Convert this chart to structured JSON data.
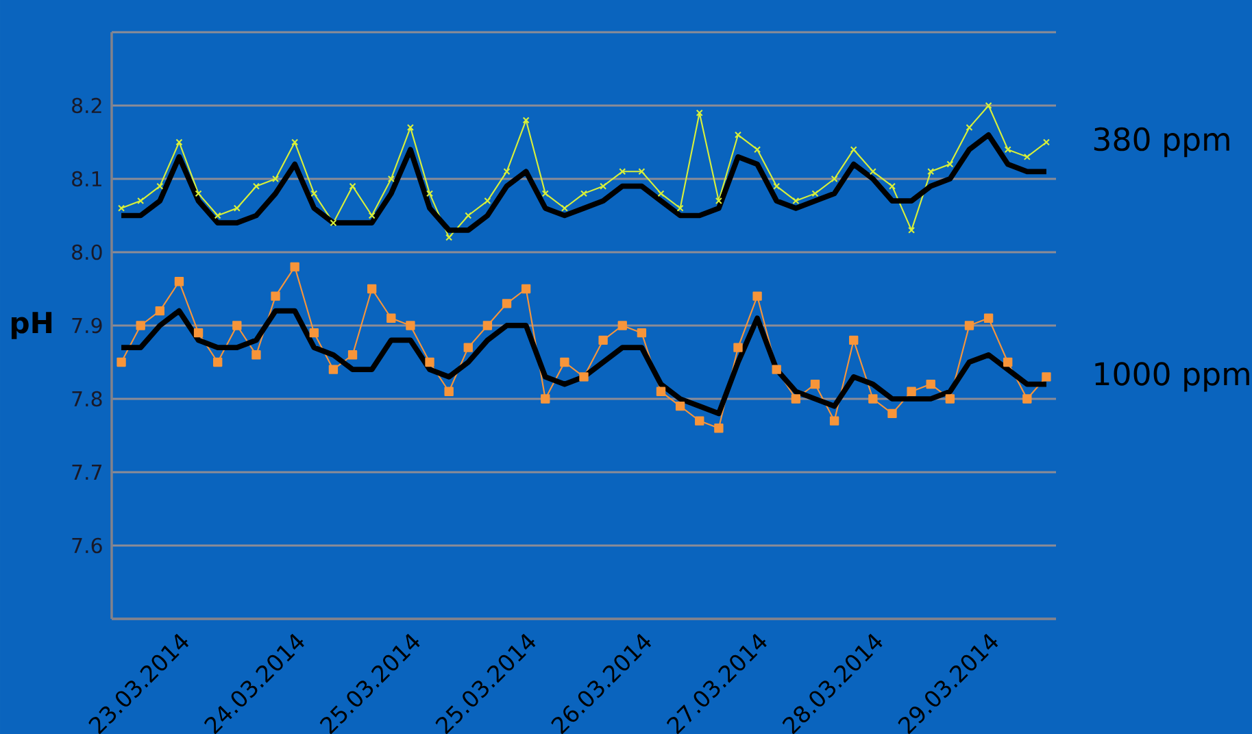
{
  "chart_data": {
    "type": "line",
    "ylabel": "pH",
    "categories": [
      null,
      null,
      null,
      "23.03.2014",
      null,
      null,
      null,
      null,
      null,
      "24.03.2014",
      null,
      null,
      null,
      null,
      null,
      "25.03.2014",
      null,
      null,
      null,
      null,
      null,
      "25.03.2014",
      null,
      null,
      null,
      null,
      null,
      "26.03.2014",
      null,
      null,
      null,
      null,
      null,
      "27.03.2014",
      null,
      null,
      null,
      null,
      null,
      "28.03.2014",
      null,
      null,
      null,
      null,
      null,
      "29.03.2014",
      null,
      null,
      null
    ],
    "ylim": [
      7.5,
      8.3
    ],
    "yticks": [
      {
        "value": 7.5,
        "label": null
      },
      7.6,
      7.7,
      7.8,
      7.9,
      {
        "value": 8.0,
        "label": "8.0"
      },
      8.1,
      8.2,
      {
        "value": 8.3,
        "label": null
      }
    ],
    "grid": "y",
    "series": [
      {
        "name": "380 ppm",
        "color": "#d8f03a",
        "marker": "cross",
        "values": [
          8.06,
          8.07,
          8.09,
          8.15,
          8.08,
          8.05,
          8.06,
          8.09,
          8.1,
          8.15,
          8.08,
          8.04,
          8.09,
          8.05,
          8.1,
          8.17,
          8.08,
          8.02,
          8.05,
          8.07,
          8.11,
          8.18,
          8.08,
          8.06,
          8.08,
          8.09,
          8.11,
          8.11,
          8.08,
          8.06,
          8.19,
          8.07,
          8.16,
          8.14,
          8.09,
          8.07,
          8.08,
          8.1,
          8.14,
          8.11,
          8.09,
          8.03,
          8.11,
          8.12,
          8.17,
          8.2,
          8.14,
          8.13,
          8.15
        ]
      },
      {
        "color": "#000000",
        "marker": "none",
        "values": [
          8.05,
          8.05,
          8.07,
          8.13,
          8.07,
          8.04,
          8.04,
          8.05,
          8.08,
          8.12,
          8.06,
          8.04,
          8.04,
          8.04,
          8.08,
          8.14,
          8.06,
          8.03,
          8.03,
          8.05,
          8.09,
          8.11,
          8.06,
          8.05,
          8.06,
          8.07,
          8.09,
          8.09,
          8.07,
          8.05,
          8.05,
          8.06,
          8.13,
          8.12,
          8.07,
          8.06,
          8.07,
          8.08,
          8.12,
          8.1,
          8.07,
          8.07,
          8.09,
          8.1,
          8.14,
          8.16,
          8.12,
          8.11,
          8.11
        ]
      },
      {
        "name": "1000 ppm",
        "color": "#f7953a",
        "marker": "square",
        "values": [
          7.85,
          7.9,
          7.92,
          7.96,
          7.89,
          7.85,
          7.9,
          7.86,
          7.94,
          7.98,
          7.89,
          7.84,
          7.86,
          7.95,
          7.91,
          7.9,
          7.85,
          7.81,
          7.87,
          7.9,
          7.93,
          7.95,
          7.8,
          7.85,
          7.83,
          7.88,
          7.9,
          7.89,
          7.81,
          7.79,
          7.77,
          7.76,
          7.87,
          7.94,
          7.84,
          7.8,
          7.82,
          7.77,
          7.88,
          7.8,
          7.78,
          7.81,
          7.82,
          7.8,
          7.9,
          7.91,
          7.85,
          7.8,
          7.83
        ]
      },
      {
        "color": "#000000",
        "marker": "none",
        "values": [
          7.87,
          7.87,
          7.9,
          7.92,
          7.88,
          7.87,
          7.87,
          7.88,
          7.92,
          7.92,
          7.87,
          7.86,
          7.84,
          7.84,
          7.88,
          7.88,
          7.84,
          7.83,
          7.85,
          7.88,
          7.9,
          7.9,
          7.83,
          7.82,
          7.83,
          7.85,
          7.87,
          7.87,
          7.82,
          7.8,
          7.79,
          7.78,
          7.85,
          7.91,
          7.84,
          7.81,
          7.8,
          7.79,
          7.83,
          7.82,
          7.8,
          7.8,
          7.8,
          7.81,
          7.85,
          7.86,
          7.84,
          7.82,
          7.82
        ]
      }
    ]
  }
}
